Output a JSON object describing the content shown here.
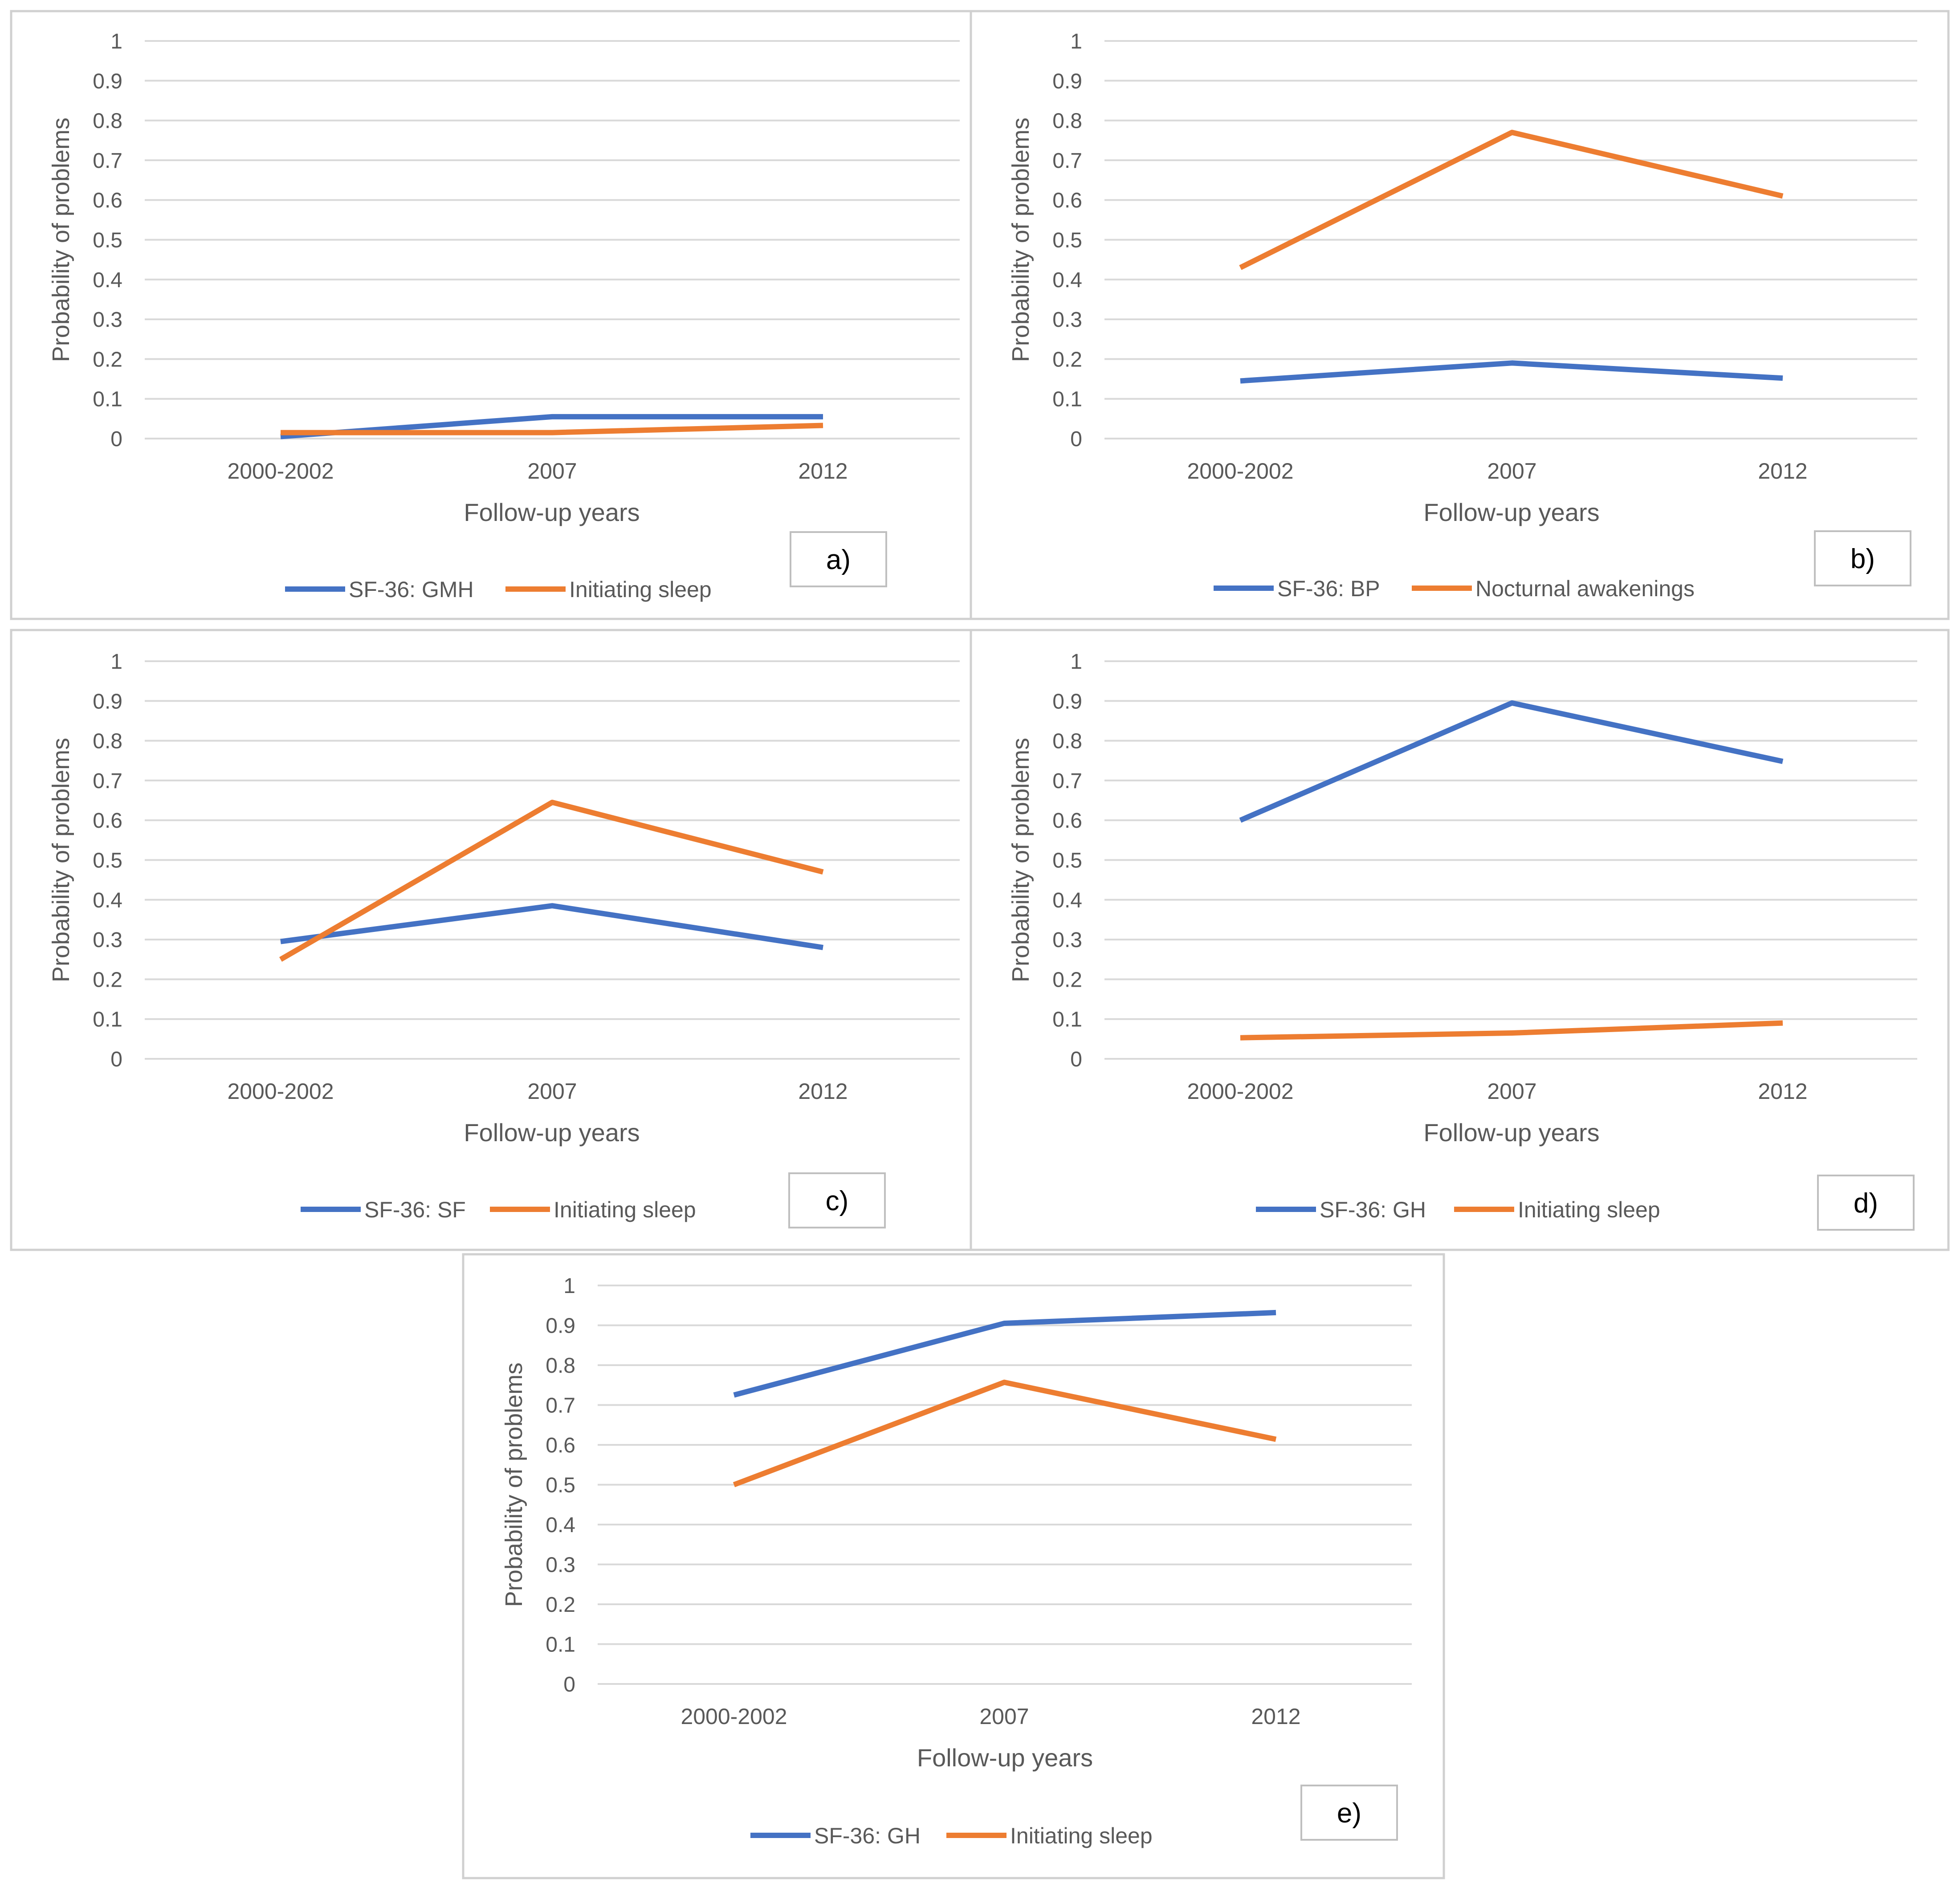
{
  "colors": {
    "blue": "#4472c4",
    "orange": "#ed7d31",
    "grid": "#d9d9d9",
    "text": "#595959"
  },
  "chart_data": [
    {
      "type": "line",
      "panel_label": "a)",
      "categories": [
        "2000-2002",
        "2007",
        "2012"
      ],
      "xlabel": "Follow-up years",
      "ylabel": "Probability of problems",
      "ylim": [
        0,
        1
      ],
      "yticks": [
        "0",
        "0.1",
        "0.2",
        "0.3",
        "0.4",
        "0.5",
        "0.6",
        "0.7",
        "0.8",
        "0.9",
        "1"
      ],
      "series": [
        {
          "name": "SF-36: GMH",
          "color": "blue",
          "values": [
            0.005,
            0.055,
            0.055
          ]
        },
        {
          "name": "Initiating sleep",
          "color": "orange",
          "values": [
            0.015,
            0.015,
            0.033
          ]
        }
      ]
    },
    {
      "type": "line",
      "panel_label": "b)",
      "categories": [
        "2000-2002",
        "2007",
        "2012"
      ],
      "xlabel": "Follow-up years",
      "ylabel": "Probability of problems",
      "ylim": [
        0,
        1
      ],
      "yticks": [
        "0",
        "0.1",
        "0.2",
        "0.3",
        "0.4",
        "0.5",
        "0.6",
        "0.7",
        "0.8",
        "0.9",
        "1"
      ],
      "series": [
        {
          "name": "SF-36: BP",
          "color": "blue",
          "values": [
            0.145,
            0.19,
            0.152
          ]
        },
        {
          "name": "Nocturnal awakenings",
          "color": "orange",
          "values": [
            0.43,
            0.77,
            0.61
          ]
        }
      ]
    },
    {
      "type": "line",
      "panel_label": "c)",
      "categories": [
        "2000-2002",
        "2007",
        "2012"
      ],
      "xlabel": "Follow-up years",
      "ylabel": "Probability of problems",
      "ylim": [
        0,
        1
      ],
      "yticks": [
        "0",
        "0.1",
        "0.2",
        "0.3",
        "0.4",
        "0.5",
        "0.6",
        "0.7",
        "0.8",
        "0.9",
        "1"
      ],
      "series": [
        {
          "name": "SF-36: SF",
          "color": "blue",
          "values": [
            0.295,
            0.385,
            0.28
          ]
        },
        {
          "name": "Initiating sleep",
          "color": "orange",
          "values": [
            0.25,
            0.645,
            0.47
          ]
        }
      ]
    },
    {
      "type": "line",
      "panel_label": "d)",
      "categories": [
        "2000-2002",
        "2007",
        "2012"
      ],
      "xlabel": "Follow-up years",
      "ylabel": "Probability of problems",
      "ylim": [
        0,
        1
      ],
      "yticks": [
        "0",
        "0.1",
        "0.2",
        "0.3",
        "0.4",
        "0.5",
        "0.6",
        "0.7",
        "0.8",
        "0.9",
        "1"
      ],
      "series": [
        {
          "name": "SF-36: GH",
          "color": "blue",
          "values": [
            0.6,
            0.895,
            0.748
          ]
        },
        {
          "name": "Initiating sleep",
          "color": "orange",
          "values": [
            0.053,
            0.065,
            0.09
          ]
        }
      ]
    },
    {
      "type": "line",
      "panel_label": "e)",
      "categories": [
        "2000-2002",
        "2007",
        "2012"
      ],
      "xlabel": "Follow-up years",
      "ylabel": "Probability of problems",
      "ylim": [
        0,
        1
      ],
      "yticks": [
        "0",
        "0.1",
        "0.2",
        "0.3",
        "0.4",
        "0.5",
        "0.6",
        "0.7",
        "0.8",
        "0.9",
        "1"
      ],
      "series": [
        {
          "name": "SF-36: GH",
          "color": "blue",
          "values": [
            0.725,
            0.905,
            0.932
          ]
        },
        {
          "name": "Initiating sleep",
          "color": "orange",
          "values": [
            0.5,
            0.757,
            0.614
          ]
        }
      ]
    }
  ]
}
